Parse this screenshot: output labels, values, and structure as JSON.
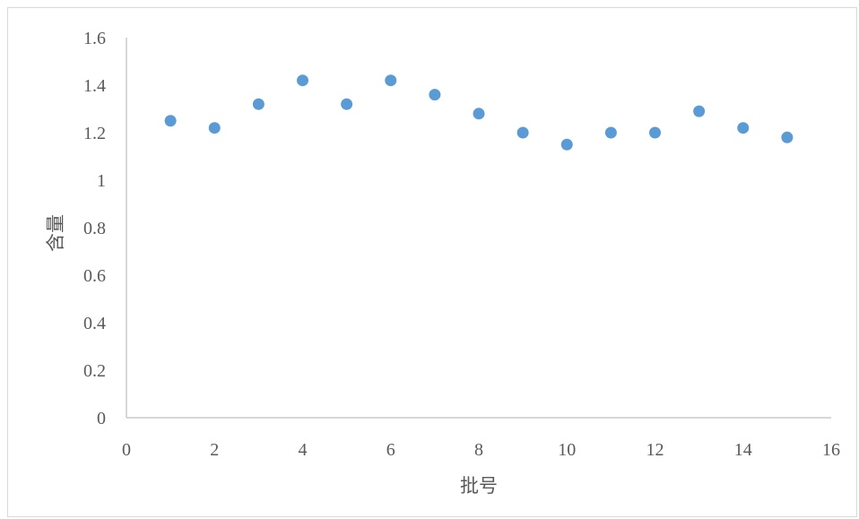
{
  "chart_data": {
    "type": "scatter",
    "title": "",
    "xlabel": "批号",
    "ylabel": "含量",
    "xlim": [
      0,
      16
    ],
    "ylim": [
      0,
      1.6
    ],
    "x_ticks": [
      "0",
      "2",
      "4",
      "6",
      "8",
      "10",
      "12",
      "14",
      "16"
    ],
    "y_ticks": [
      "0",
      "0.2",
      "0.4",
      "0.6",
      "0.8",
      "1",
      "1.2",
      "1.4",
      "1.6"
    ],
    "grid": false,
    "legend": false,
    "marker_color": "#5b9bd5",
    "series": [
      {
        "x": [
          1,
          2,
          3,
          4,
          5,
          6,
          7,
          8,
          9,
          10,
          11,
          12,
          13,
          14,
          15
        ],
        "y": [
          1.25,
          1.22,
          1.32,
          1.42,
          1.32,
          1.42,
          1.36,
          1.28,
          1.2,
          1.15,
          1.2,
          1.2,
          1.29,
          1.22,
          1.18
        ]
      }
    ]
  }
}
